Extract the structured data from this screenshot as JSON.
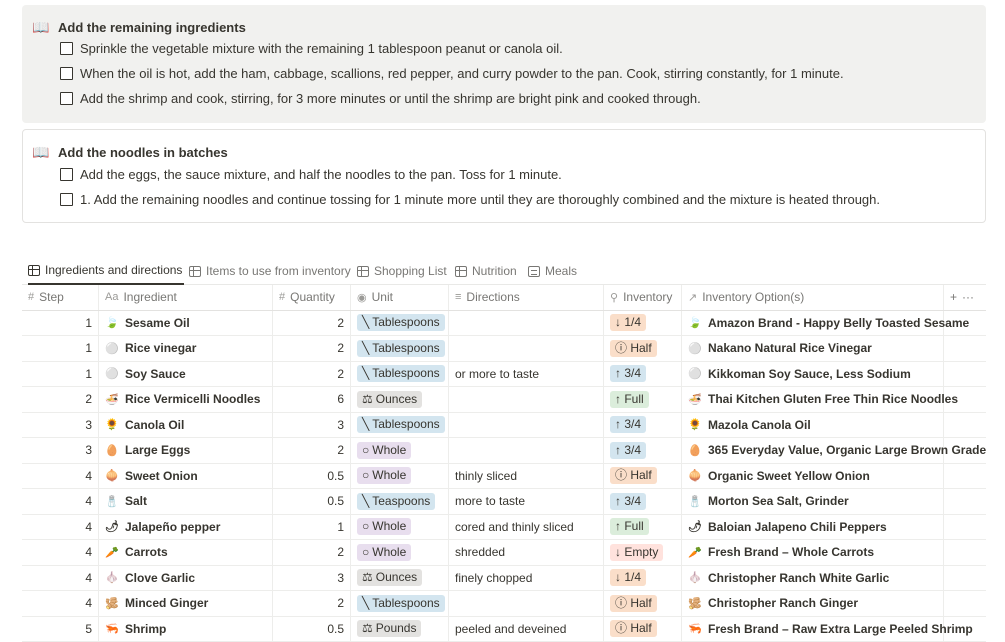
{
  "callouts": [
    {
      "title": "Add the remaining ingredients",
      "todos": [
        "Sprinkle the vegetable mixture with the remaining 1 tablespoon peanut or canola oil.",
        "When the oil is hot, add the ham, cabbage, scallions, red pepper, and curry powder to the pan. Cook, stirring constantly, for 1 minute.",
        "Add the shrimp and cook, stirring, for 3 more minutes or until the shrimp are bright pink and cooked through."
      ]
    },
    {
      "title": "Add the noodles in batches",
      "todos": [
        "Add the eggs, the sauce mixture, and half the noodles to the pan. Toss for 1 minute.",
        "1. Add the remaining noodles and continue tossing for 1 minute more until they are thoroughly combined and the mixture is heated through."
      ]
    }
  ],
  "tabs": [
    {
      "label": "Ingredients and directions",
      "icon": "table-icon",
      "active": true
    },
    {
      "label": "Items to use from inventory",
      "icon": "table-icon",
      "active": false
    },
    {
      "label": "Shopping List",
      "icon": "table-icon",
      "active": false
    },
    {
      "label": "Nutrition",
      "icon": "table-icon",
      "active": false
    },
    {
      "label": "Meals",
      "icon": "document-icon",
      "active": false
    }
  ],
  "headers": {
    "step": "Step",
    "ingredient": "Ingredient",
    "quantity": "Quantity",
    "unit": "Unit",
    "directions": "Directions",
    "inventory": "Inventory",
    "options": "Inventory Option(s)",
    "add": "+",
    "more": "···"
  },
  "rows": [
    {
      "step": "1",
      "emoji": "🍃",
      "ingredient": "Sesame Oil",
      "qty": "2",
      "unit": "Tablespoons",
      "unit_icon": "╲",
      "unit_color": "blue",
      "dir": "",
      "inv": "↓ 1/4",
      "inv_color": "orange",
      "opt": "Amazon Brand - Happy Belly Toasted Sesame"
    },
    {
      "step": "1",
      "emoji": "⚪",
      "ingredient": "Rice vinegar",
      "qty": "2",
      "unit": "Tablespoons",
      "unit_icon": "╲",
      "unit_color": "blue",
      "dir": "",
      "inv": "ⓘ Half",
      "inv_color": "orange",
      "opt": "Nakano Natural Rice Vinegar"
    },
    {
      "step": "1",
      "emoji": "⚪",
      "ingredient": "Soy Sauce",
      "qty": "2",
      "unit": "Tablespoons",
      "unit_icon": "╲",
      "unit_color": "blue",
      "dir": "or more to taste",
      "inv": "↑ 3/4",
      "inv_color": "lightblue",
      "opt": "Kikkoman Soy Sauce, Less Sodium"
    },
    {
      "step": "2",
      "emoji": "🍜",
      "ingredient": "Rice Vermicelli Noodles",
      "qty": "6",
      "unit": "Ounces",
      "unit_icon": "⚖",
      "unit_color": "gray",
      "dir": "",
      "inv": "↑ Full",
      "inv_color": "green",
      "opt": "Thai Kitchen Gluten Free Thin Rice Noodles"
    },
    {
      "step": "3",
      "emoji": "🌻",
      "ingredient": "Canola Oil",
      "qty": "3",
      "unit": "Tablespoons",
      "unit_icon": "╲",
      "unit_color": "blue",
      "dir": "",
      "inv": "↑ 3/4",
      "inv_color": "lightblue",
      "opt": "Mazola Canola Oil"
    },
    {
      "step": "3",
      "emoji": "🥚",
      "ingredient": "Large Eggs",
      "qty": "2",
      "unit": "Whole",
      "unit_icon": "○",
      "unit_color": "purple",
      "dir": "",
      "inv": "↑ 3/4",
      "inv_color": "lightblue",
      "opt": "365 Everyday Value, Organic Large Brown Grade"
    },
    {
      "step": "4",
      "emoji": "🧅",
      "ingredient": "Sweet Onion",
      "qty": "0.5",
      "unit": "Whole",
      "unit_icon": "○",
      "unit_color": "purple",
      "dir": "thinly sliced",
      "inv": "ⓘ Half",
      "inv_color": "orange",
      "opt": "Organic Sweet Yellow Onion"
    },
    {
      "step": "4",
      "emoji": "🧂",
      "ingredient": "Salt",
      "qty": "0.5",
      "unit": "Teaspoons",
      "unit_icon": "╲",
      "unit_color": "blue",
      "dir": "more to taste",
      "inv": "↑ 3/4",
      "inv_color": "lightblue",
      "opt": "Morton Sea Salt, Grinder"
    },
    {
      "step": "4",
      "emoji": "🌶",
      "ingredient": "Jalapeño pepper",
      "qty": "1",
      "unit": "Whole",
      "unit_icon": "○",
      "unit_color": "purple",
      "dir": "cored and thinly sliced",
      "inv": "↑ Full",
      "inv_color": "green",
      "opt": "Baloian Jalapeno Chili Peppers"
    },
    {
      "step": "4",
      "emoji": "🥕",
      "ingredient": "Carrots",
      "qty": "2",
      "unit": "Whole",
      "unit_icon": "○",
      "unit_color": "purple",
      "dir": "shredded",
      "inv": "↓ Empty",
      "inv_color": "red",
      "opt": "Fresh Brand – Whole Carrots"
    },
    {
      "step": "4",
      "emoji": "🧄",
      "ingredient": "Clove Garlic",
      "qty": "3",
      "unit": "Ounces",
      "unit_icon": "⚖",
      "unit_color": "gray",
      "dir": "finely chopped",
      "inv": "↓ 1/4",
      "inv_color": "orange",
      "opt": "Christopher Ranch White Garlic"
    },
    {
      "step": "4",
      "emoji": "🫚",
      "ingredient": "Minced Ginger",
      "qty": "2",
      "unit": "Tablespoons",
      "unit_icon": "╲",
      "unit_color": "blue",
      "dir": "",
      "inv": "ⓘ Half",
      "inv_color": "orange",
      "opt": "Christopher Ranch Ginger"
    },
    {
      "step": "5",
      "emoji": "🦐",
      "ingredient": "Shrimp",
      "qty": "0.5",
      "unit": "Pounds",
      "unit_icon": "⚖",
      "unit_color": "gray",
      "dir": "peeled and deveined",
      "inv": "ⓘ Half",
      "inv_color": "orange",
      "opt": "Fresh Brand – Raw Extra Large Peeled Shrimp"
    }
  ]
}
